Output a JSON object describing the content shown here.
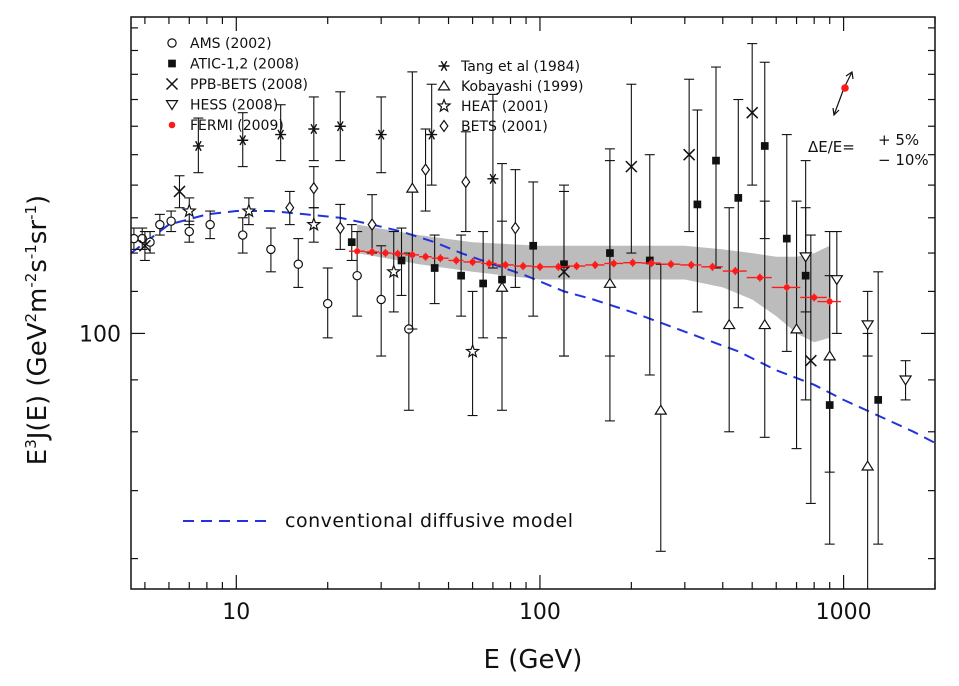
{
  "chart_data": {
    "type": "scatter",
    "title": "",
    "xlabel": "E (GeV)",
    "ylabel_main": "E",
    "ylabel_sup": "3",
    "ylabel_rest": "J(E)  (GeV",
    "ylabel_u1": "2",
    "ylabel_u2": "m",
    "ylabel_u3": "-2",
    "ylabel_u4": "s",
    "ylabel_u5": "-1",
    "ylabel_u6": "sr",
    "ylabel_u7": "-1",
    "ylabel_close": ")",
    "xscale": "log",
    "yscale": "log",
    "xlim": [
      4.5,
      2000
    ],
    "ylim": [
      56,
      205
    ],
    "x_tick_labels": [
      "10",
      "100",
      "1000"
    ],
    "x_ticks": [
      10,
      100,
      1000
    ],
    "y_tick_labels": [
      "100"
    ],
    "y_ticks": [
      100
    ],
    "legend_left": [
      {
        "name": "AMS (2002)",
        "marker": "circle-open"
      },
      {
        "name": "ATIC-1,2 (2008)",
        "marker": "square-filled"
      },
      {
        "name": "PPB-BETS (2008)",
        "marker": "cross"
      },
      {
        "name": "HESS (2008)",
        "marker": "triangle-down-open"
      },
      {
        "name": "FERMI (2009)",
        "marker": "circle-red"
      }
    ],
    "legend_right": [
      {
        "name": "Tang et al (1984)",
        "marker": "asterisk"
      },
      {
        "name": "Kobayashi (1999)",
        "marker": "triangle-up-open"
      },
      {
        "name": "HEAT (2001)",
        "marker": "star-open"
      },
      {
        "name": "BETS (2001)",
        "marker": "diamond-open"
      }
    ],
    "energy_scale_note": {
      "prefix": "ΔE/E=",
      "plus": "+ 5%",
      "minus": "− 10%"
    },
    "model_label": "conventional diffusive model",
    "model_curve": {
      "name": "conventional diffusive model",
      "x": [
        4.5,
        6,
        8,
        10,
        13,
        17,
        22,
        28,
        35,
        45,
        55,
        70,
        90,
        120,
        150,
        200,
        260,
        340,
        450,
        600,
        800,
        1000,
        1300,
        1700,
        2000
      ],
      "y": [
        120,
        128,
        131,
        132,
        132,
        131,
        130,
        128,
        126,
        123,
        120,
        117,
        114,
        110,
        108,
        105,
        102,
        99,
        96,
        92,
        89,
        86,
        83,
        80,
        78
      ]
    },
    "fermi_band": {
      "x": [
        25,
        40,
        60,
        100,
        150,
        200,
        300,
        400,
        500,
        600,
        700,
        800,
        900
      ],
      "lower": [
        120,
        117,
        115,
        113,
        113,
        113,
        113,
        111,
        108,
        104,
        100,
        98,
        99
      ],
      "upper": [
        128,
        125,
        123,
        122,
        122,
        122,
        122,
        121,
        120,
        119,
        119,
        120,
        122
      ]
    },
    "series": [
      {
        "name": "AMS (2002)",
        "marker": "circle-open",
        "points": [
          {
            "x": 4.6,
            "y": 124,
            "lo": 121,
            "hi": 127
          },
          {
            "x": 4.9,
            "y": 124,
            "lo": 121,
            "hi": 127
          },
          {
            "x": 5.2,
            "y": 123,
            "lo": 120,
            "hi": 126
          },
          {
            "x": 5.6,
            "y": 128,
            "lo": 125,
            "hi": 131
          },
          {
            "x": 6.1,
            "y": 129,
            "lo": 126,
            "hi": 132
          },
          {
            "x": 7.0,
            "y": 126,
            "lo": 123,
            "hi": 129
          },
          {
            "x": 8.2,
            "y": 128,
            "lo": 124,
            "hi": 132
          },
          {
            "x": 10.5,
            "y": 125,
            "lo": 120,
            "hi": 130
          },
          {
            "x": 13.0,
            "y": 121,
            "lo": 115,
            "hi": 127
          },
          {
            "x": 16.0,
            "y": 117,
            "lo": 111,
            "hi": 124
          },
          {
            "x": 20.0,
            "y": 107,
            "lo": 99,
            "hi": 116
          },
          {
            "x": 25.0,
            "y": 114,
            "lo": 104,
            "hi": 126
          },
          {
            "x": 30.0,
            "y": 108,
            "lo": 95,
            "hi": 122
          },
          {
            "x": 37.0,
            "y": 101,
            "lo": 84,
            "hi": 120
          }
        ]
      },
      {
        "name": "ATIC-1,2 (2008)",
        "marker": "square-filled",
        "points": [
          {
            "x": 24,
            "y": 123,
            "lo": 118,
            "hi": 128
          },
          {
            "x": 35,
            "y": 118,
            "lo": 109,
            "hi": 127
          },
          {
            "x": 45,
            "y": 116,
            "lo": 107,
            "hi": 125
          },
          {
            "x": 55,
            "y": 114,
            "lo": 104,
            "hi": 125
          },
          {
            "x": 65,
            "y": 112,
            "lo": 99,
            "hi": 126
          },
          {
            "x": 75,
            "y": 113,
            "lo": 99,
            "hi": 129
          },
          {
            "x": 95,
            "y": 122,
            "lo": 104,
            "hi": 141
          },
          {
            "x": 120,
            "y": 117,
            "lo": 95,
            "hi": 140
          },
          {
            "x": 170,
            "y": 120,
            "lo": 95,
            "hi": 148
          },
          {
            "x": 230,
            "y": 118,
            "lo": 91,
            "hi": 150
          },
          {
            "x": 330,
            "y": 134,
            "lo": 105,
            "hi": 166
          },
          {
            "x": 380,
            "y": 148,
            "lo": 116,
            "hi": 183
          },
          {
            "x": 450,
            "y": 136,
            "lo": 106,
            "hi": 170
          },
          {
            "x": 550,
            "y": 153,
            "lo": 124,
            "hi": 185
          },
          {
            "x": 650,
            "y": 124,
            "lo": 96,
            "hi": 157
          },
          {
            "x": 750,
            "y": 114,
            "lo": 86,
            "hi": 148
          },
          {
            "x": 900,
            "y": 85,
            "lo": 62,
            "hi": 114
          },
          {
            "x": 1300,
            "y": 86,
            "lo": 62,
            "hi": 115
          }
        ]
      },
      {
        "name": "PPB-BETS (2008)",
        "marker": "cross",
        "points": [
          {
            "x": 5.0,
            "y": 122,
            "lo": 118,
            "hi": 126
          },
          {
            "x": 6.5,
            "y": 138,
            "lo": 133,
            "hi": 143
          },
          {
            "x": 120,
            "y": 115,
            "lo": 95,
            "hi": 138
          },
          {
            "x": 200,
            "y": 146,
            "lo": 120,
            "hi": 176
          },
          {
            "x": 310,
            "y": 150,
            "lo": 126,
            "hi": 178
          },
          {
            "x": 500,
            "y": 165,
            "lo": 140,
            "hi": 193
          },
          {
            "x": 780,
            "y": 94,
            "lo": 68,
            "hi": 125
          }
        ]
      },
      {
        "name": "HESS (2008)",
        "marker": "triangle-down-open",
        "points": [
          {
            "x": 750,
            "y": 119,
            "lo": 105,
            "hi": 133
          },
          {
            "x": 950,
            "y": 113,
            "lo": 100,
            "hi": 126
          },
          {
            "x": 1200,
            "y": 102,
            "lo": 95,
            "hi": 110
          },
          {
            "x": 1600,
            "y": 90,
            "lo": 86,
            "hi": 94
          }
        ]
      },
      {
        "name": "Tang et al (1984)",
        "marker": "asterisk",
        "points": [
          {
            "x": 7.5,
            "y": 153,
            "lo": 144,
            "hi": 163
          },
          {
            "x": 10.5,
            "y": 155,
            "lo": 146,
            "hi": 165
          },
          {
            "x": 14.0,
            "y": 157,
            "lo": 148,
            "hi": 168
          },
          {
            "x": 18.0,
            "y": 159,
            "lo": 148,
            "hi": 171
          },
          {
            "x": 22.0,
            "y": 160,
            "lo": 148,
            "hi": 173
          },
          {
            "x": 30.0,
            "y": 157,
            "lo": 144,
            "hi": 171
          },
          {
            "x": 44.0,
            "y": 157,
            "lo": 140,
            "hi": 176
          },
          {
            "x": 70.0,
            "y": 142,
            "lo": 116,
            "hi": 172
          }
        ]
      },
      {
        "name": "Kobayashi (1999)",
        "marker": "triangle-up-open",
        "points": [
          {
            "x": 38,
            "y": 139,
            "lo": 101,
            "hi": 181
          },
          {
            "x": 75,
            "y": 111,
            "lo": 84,
            "hi": 147
          },
          {
            "x": 170,
            "y": 112,
            "lo": 82,
            "hi": 152
          },
          {
            "x": 250,
            "y": 84,
            "lo": 61,
            "hi": 117
          },
          {
            "x": 420,
            "y": 102,
            "lo": 80,
            "hi": 133
          },
          {
            "x": 550,
            "y": 102,
            "lo": 79,
            "hi": 135
          },
          {
            "x": 700,
            "y": 101,
            "lo": 77,
            "hi": 135
          },
          {
            "x": 900,
            "y": 95,
            "lo": 73,
            "hi": 126
          },
          {
            "x": 1200,
            "y": 74,
            "lo": 55,
            "hi": 100
          }
        ]
      },
      {
        "name": "HEAT (2001)",
        "marker": "star-open",
        "points": [
          {
            "x": 7.0,
            "y": 132,
            "lo": 128,
            "hi": 136
          },
          {
            "x": 11.0,
            "y": 132,
            "lo": 128,
            "hi": 136
          },
          {
            "x": 18.0,
            "y": 128,
            "lo": 123,
            "hi": 133
          },
          {
            "x": 33.0,
            "y": 115,
            "lo": 105,
            "hi": 126
          },
          {
            "x": 60.0,
            "y": 96,
            "lo": 83,
            "hi": 110
          }
        ]
      },
      {
        "name": "BETS (2001)",
        "marker": "diamond-open",
        "points": [
          {
            "x": 15.0,
            "y": 133,
            "lo": 128,
            "hi": 138
          },
          {
            "x": 18.0,
            "y": 139,
            "lo": 133,
            "hi": 146
          },
          {
            "x": 22.0,
            "y": 127,
            "lo": 121,
            "hi": 134
          },
          {
            "x": 28.0,
            "y": 128,
            "lo": 120,
            "hi": 137
          },
          {
            "x": 42.0,
            "y": 145,
            "lo": 132,
            "hi": 159
          },
          {
            "x": 57.0,
            "y": 141,
            "lo": 126,
            "hi": 158
          },
          {
            "x": 83.0,
            "y": 127,
            "lo": 111,
            "hi": 145
          }
        ]
      },
      {
        "name": "FERMI (2009)",
        "marker": "circle-red",
        "points": [
          {
            "x": 25,
            "y": 120.5,
            "xlo": 23.5,
            "xhi": 26.5
          },
          {
            "x": 28,
            "y": 120.3,
            "xlo": 26.5,
            "xhi": 29.5
          },
          {
            "x": 31,
            "y": 120.0,
            "xlo": 29.5,
            "xhi": 32.5
          },
          {
            "x": 34,
            "y": 119.8,
            "xlo": 32.5,
            "xhi": 36
          },
          {
            "x": 38,
            "y": 119.5,
            "xlo": 36,
            "xhi": 40
          },
          {
            "x": 42,
            "y": 119.0,
            "xlo": 40,
            "xhi": 44
          },
          {
            "x": 47,
            "y": 118.6,
            "xlo": 44,
            "xhi": 50
          },
          {
            "x": 53,
            "y": 118.0,
            "xlo": 50,
            "xhi": 56
          },
          {
            "x": 60,
            "y": 117.6,
            "xlo": 56,
            "xhi": 64
          },
          {
            "x": 68,
            "y": 117.2,
            "xlo": 64,
            "xhi": 72
          },
          {
            "x": 77,
            "y": 116.8,
            "xlo": 72,
            "xhi": 82
          },
          {
            "x": 88,
            "y": 116.5,
            "xlo": 82,
            "xhi": 94
          },
          {
            "x": 100,
            "y": 116.3,
            "xlo": 94,
            "xhi": 107
          },
          {
            "x": 115,
            "y": 116.3,
            "xlo": 107,
            "xhi": 123
          },
          {
            "x": 132,
            "y": 116.5,
            "xlo": 123,
            "xhi": 141
          },
          {
            "x": 152,
            "y": 116.8,
            "xlo": 141,
            "xhi": 163
          },
          {
            "x": 175,
            "y": 117.2,
            "xlo": 163,
            "xhi": 188
          },
          {
            "x": 202,
            "y": 117.4,
            "xlo": 188,
            "xhi": 216
          },
          {
            "x": 233,
            "y": 117.3,
            "xlo": 216,
            "xhi": 250
          },
          {
            "x": 270,
            "y": 117.0,
            "xlo": 250,
            "xhi": 290
          },
          {
            "x": 315,
            "y": 116.8,
            "xlo": 290,
            "xhi": 340
          },
          {
            "x": 370,
            "y": 116.3,
            "xlo": 340,
            "xhi": 400
          },
          {
            "x": 440,
            "y": 115.2,
            "xlo": 400,
            "xhi": 480
          },
          {
            "x": 530,
            "y": 113.5,
            "xlo": 480,
            "xhi": 580
          },
          {
            "x": 650,
            "y": 111.0,
            "xlo": 580,
            "xhi": 720
          },
          {
            "x": 800,
            "y": 108.5,
            "xlo": 720,
            "xhi": 880
          },
          {
            "x": 900,
            "y": 107.5,
            "xlo": 820,
            "xhi": 980
          }
        ]
      }
    ],
    "colors": {
      "fermi": "#ff1a1a",
      "model": "#2233dd",
      "band": "#b0b0b0",
      "ink": "#111111"
    }
  }
}
